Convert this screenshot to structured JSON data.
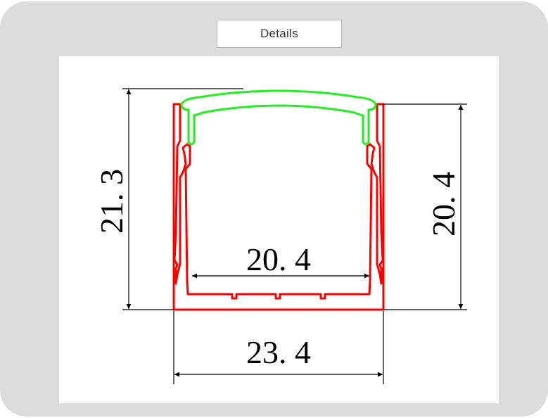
{
  "tab": {
    "label": "Details"
  },
  "drawing": {
    "dimensions": {
      "height_overall": "21. 3",
      "height_body": "20. 4",
      "inner_width": "20. 4",
      "outer_width": "23. 4"
    },
    "colors": {
      "profile": "#ff0000",
      "cover": "#22ee22",
      "lines": "#000000"
    }
  }
}
